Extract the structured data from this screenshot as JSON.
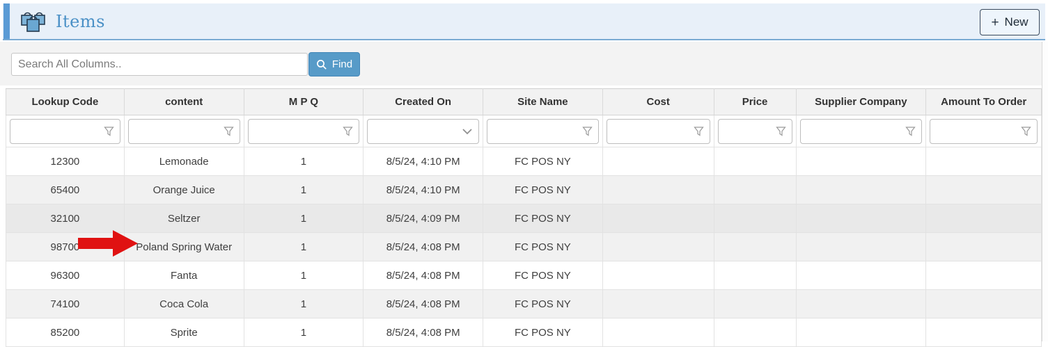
{
  "header": {
    "title": "Items",
    "icon": "shopping-bags-icon",
    "new_button": {
      "plus": "+",
      "label": "New"
    }
  },
  "toolbar": {
    "search_placeholder": "Search All Columns..",
    "find_button_label": "Find"
  },
  "table": {
    "columns": [
      {
        "key": "lookup_code",
        "label": "Lookup Code",
        "filter": "funnel"
      },
      {
        "key": "content",
        "label": "content",
        "filter": "funnel"
      },
      {
        "key": "mpq",
        "label": "M P Q",
        "filter": "funnel"
      },
      {
        "key": "created_on",
        "label": "Created On",
        "filter": "chevron"
      },
      {
        "key": "site_name",
        "label": "Site Name",
        "filter": "funnel"
      },
      {
        "key": "cost",
        "label": "Cost",
        "filter": "funnel"
      },
      {
        "key": "price",
        "label": "Price",
        "filter": "funnel"
      },
      {
        "key": "supplier_company",
        "label": "Supplier Company",
        "filter": "funnel"
      },
      {
        "key": "amount_to_order",
        "label": "Amount To Order",
        "filter": "funnel"
      }
    ],
    "rows": [
      {
        "lookup_code": "12300",
        "content": "Lemonade",
        "mpq": "1",
        "created_on": "8/5/24, 4:10 PM",
        "site_name": "FC POS NY",
        "cost": "",
        "price": "",
        "supplier_company": "",
        "amount_to_order": "",
        "highlighted": false
      },
      {
        "lookup_code": "65400",
        "content": "Orange Juice",
        "mpq": "1",
        "created_on": "8/5/24, 4:10 PM",
        "site_name": "FC POS NY",
        "cost": "",
        "price": "",
        "supplier_company": "",
        "amount_to_order": "",
        "highlighted": false
      },
      {
        "lookup_code": "32100",
        "content": "Seltzer",
        "mpq": "1",
        "created_on": "8/5/24, 4:09 PM",
        "site_name": "FC POS NY",
        "cost": "",
        "price": "",
        "supplier_company": "",
        "amount_to_order": "",
        "highlighted": true
      },
      {
        "lookup_code": "98700",
        "content": "Poland Spring Water",
        "mpq": "1",
        "created_on": "8/5/24, 4:08 PM",
        "site_name": "FC POS NY",
        "cost": "",
        "price": "",
        "supplier_company": "",
        "amount_to_order": "",
        "highlighted": false
      },
      {
        "lookup_code": "96300",
        "content": "Fanta",
        "mpq": "1",
        "created_on": "8/5/24, 4:08 PM",
        "site_name": "FC POS NY",
        "cost": "",
        "price": "",
        "supplier_company": "",
        "amount_to_order": "",
        "highlighted": false
      },
      {
        "lookup_code": "74100",
        "content": "Coca Cola",
        "mpq": "1",
        "created_on": "8/5/24, 4:08 PM",
        "site_name": "FC POS NY",
        "cost": "",
        "price": "",
        "supplier_company": "",
        "amount_to_order": "",
        "highlighted": false
      },
      {
        "lookup_code": "85200",
        "content": "Sprite",
        "mpq": "1",
        "created_on": "8/5/24, 4:08 PM",
        "site_name": "FC POS NY",
        "cost": "",
        "price": "",
        "supplier_company": "",
        "amount_to_order": "",
        "highlighted": false
      }
    ]
  },
  "annotation": {
    "red_arrow_points_at": "Poland Spring Water"
  },
  "colors": {
    "accent_blue": "#5b9bd5",
    "header_band_bg": "#e8f0f9",
    "title_blue": "#4a90c6",
    "find_button_blue": "#579bc8",
    "toolbar_gray": "#f3f3f3",
    "row_alt_gray": "#f1f1f1",
    "row_highlight_gray": "#e9e9e9",
    "arrow_red": "#e01212"
  }
}
